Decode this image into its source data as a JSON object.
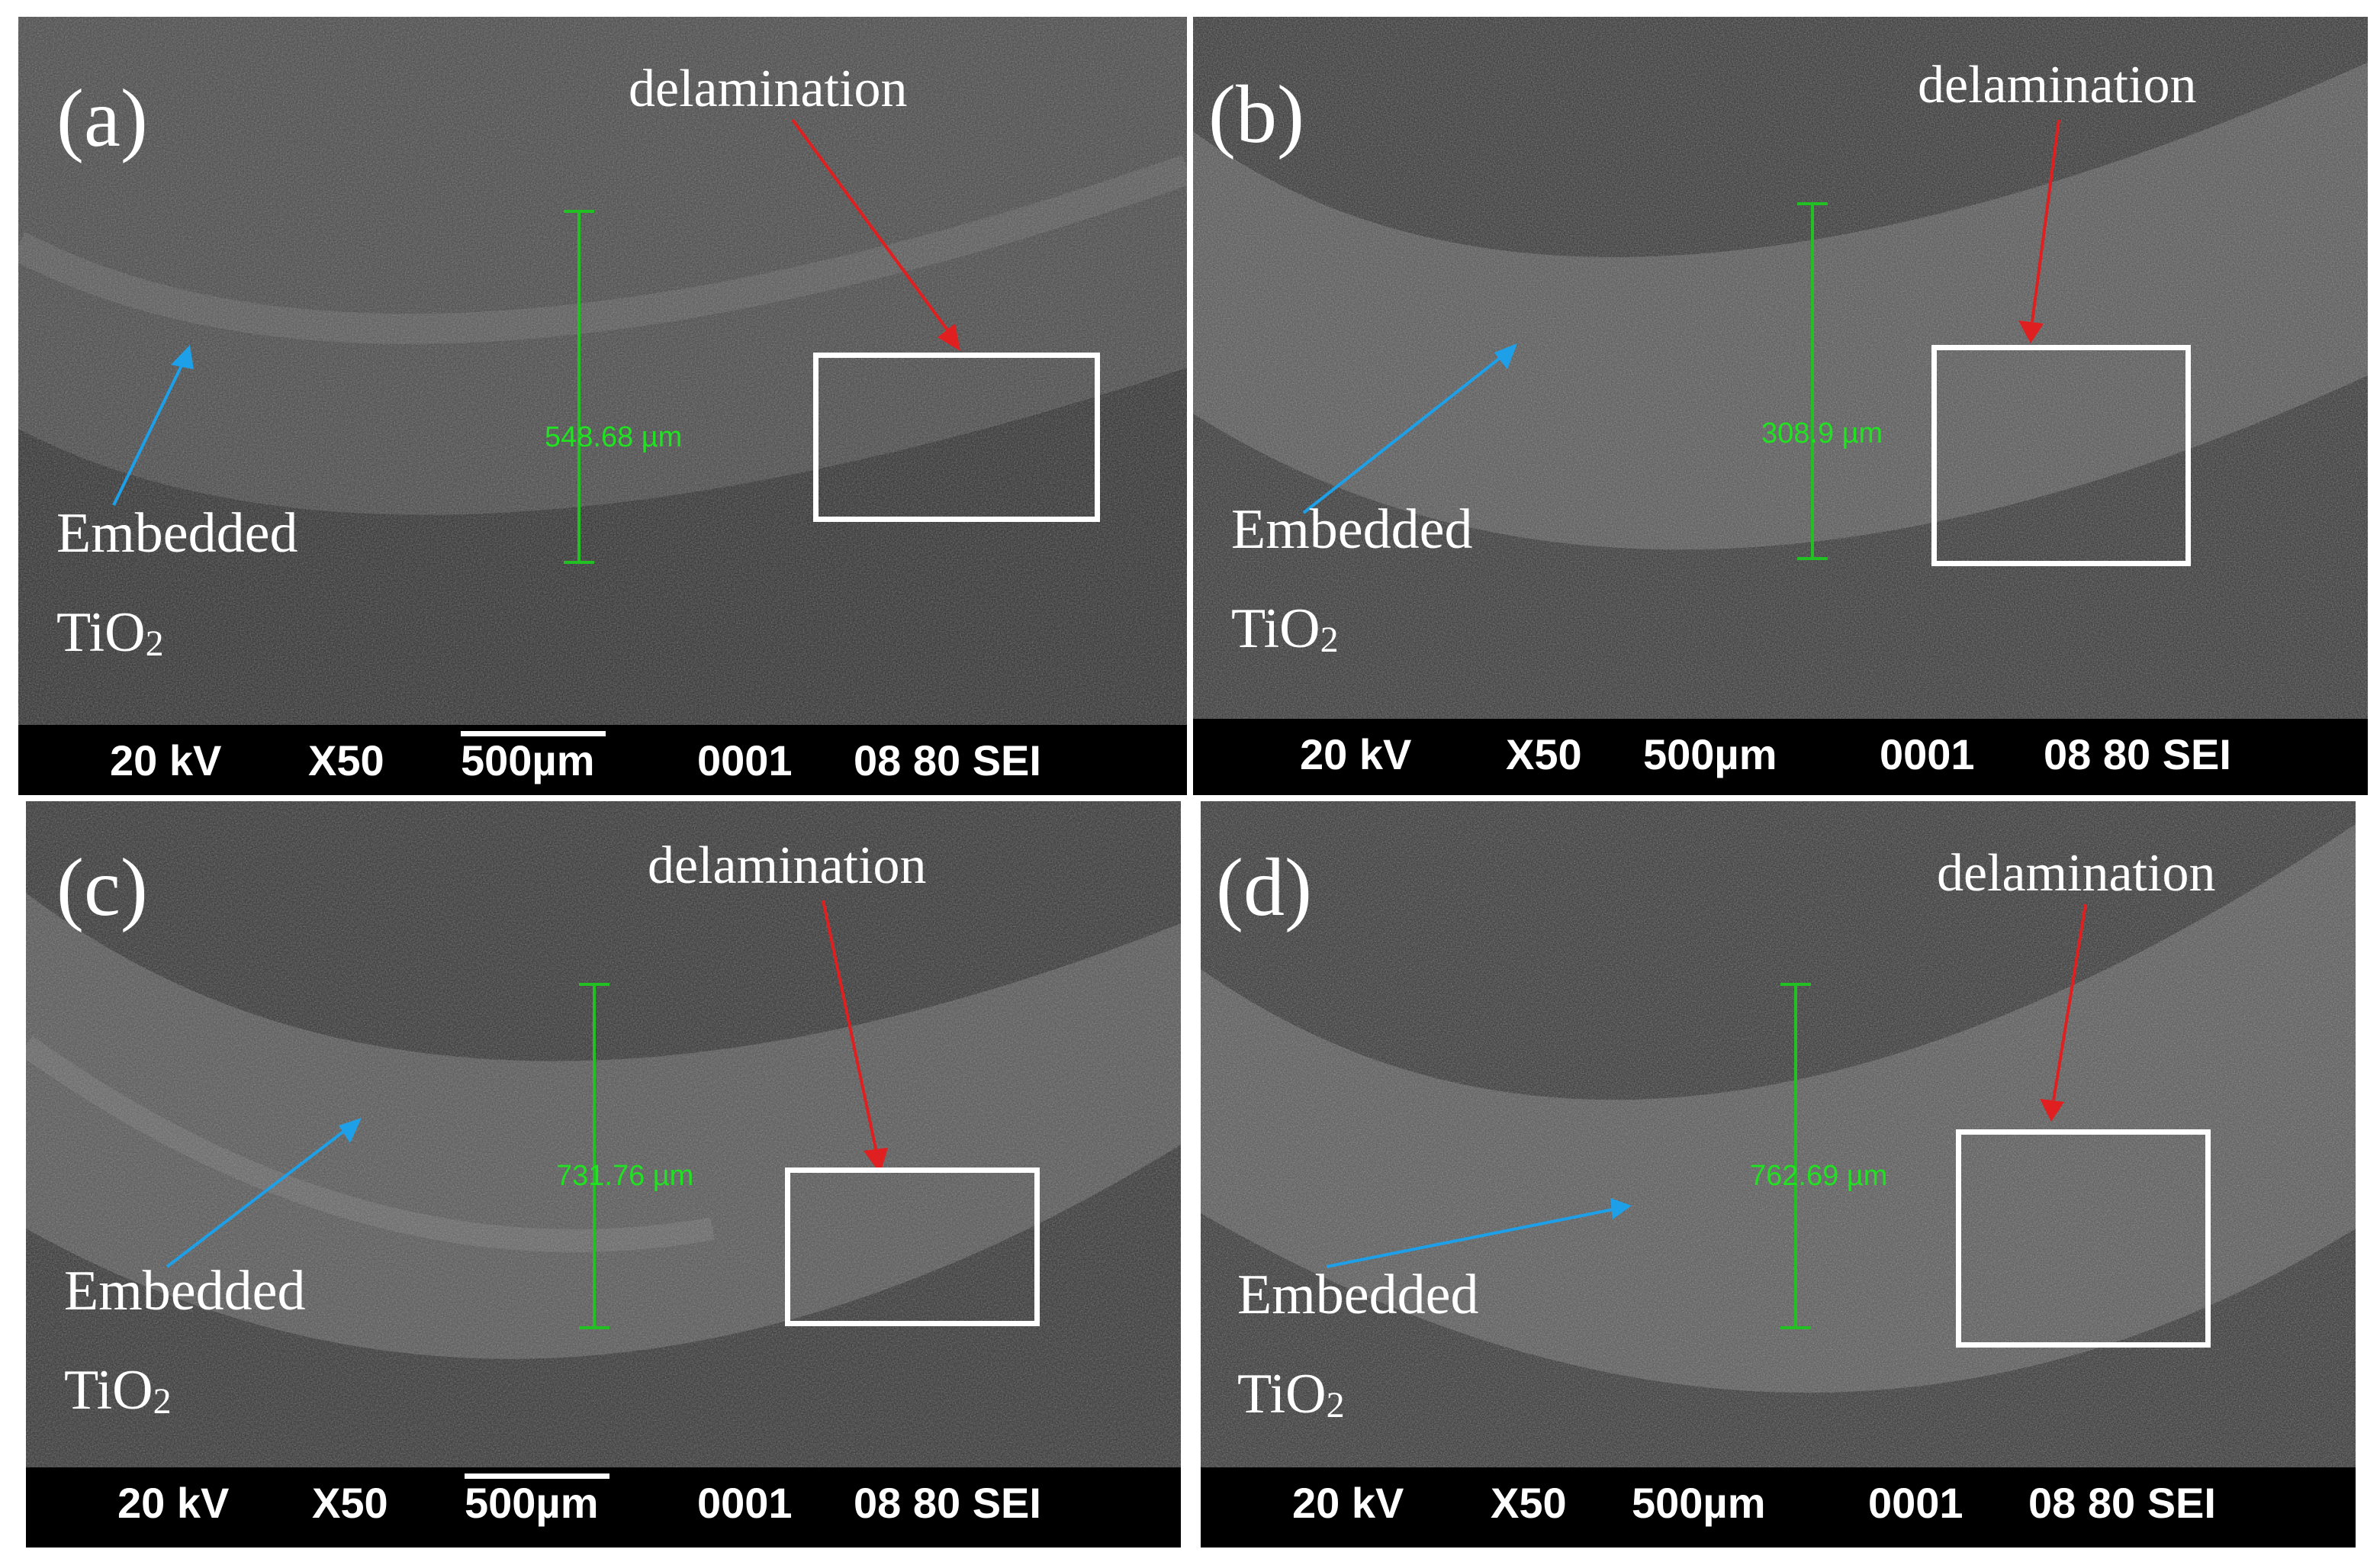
{
  "panels": [
    {
      "label": "(a)",
      "delamination": "delamination",
      "embedded": "Embedded",
      "tio2_main": "TiO",
      "tio2_sub": "2",
      "measurement": "548.68 µm",
      "bar": {
        "kv": "20 kV",
        "mag": "X50",
        "scale": "500µm",
        "num": "0001",
        "code": "08 80 SEI"
      }
    },
    {
      "label": "(b)",
      "delamination": "delamination",
      "embedded": "Embedded",
      "tio2_main": "TiO",
      "tio2_sub": "2",
      "measurement": "308.9 µm",
      "bar": {
        "kv": "20 kV",
        "mag": "X50",
        "scale": "500µm",
        "num": "0001",
        "code": "08 80 SEI"
      }
    },
    {
      "label": "(c)",
      "delamination": "delamination",
      "embedded": "Embedded",
      "tio2_main": "TiO",
      "tio2_sub": "2",
      "measurement": "731.76 µm",
      "bar": {
        "kv": "20 kV",
        "mag": "X50",
        "scale": "500µm",
        "num": "0001",
        "code": "08 80 SEI"
      }
    },
    {
      "label": "(d)",
      "delamination": "delamination",
      "embedded": "Embedded",
      "tio2_main": "TiO",
      "tio2_sub": "2",
      "measurement": "762.69 µm",
      "bar": {
        "kv": "20 kV",
        "mag": "X50",
        "scale": "500µm",
        "num": "0001",
        "code": "08 80 SEI"
      }
    }
  ],
  "colors": {
    "delamination_arrow": "#e02020",
    "tio2_arrow": "#1ea0e8",
    "measurement": "#22e022",
    "roi_box": "#ffffff",
    "info_bar": "#000000"
  }
}
